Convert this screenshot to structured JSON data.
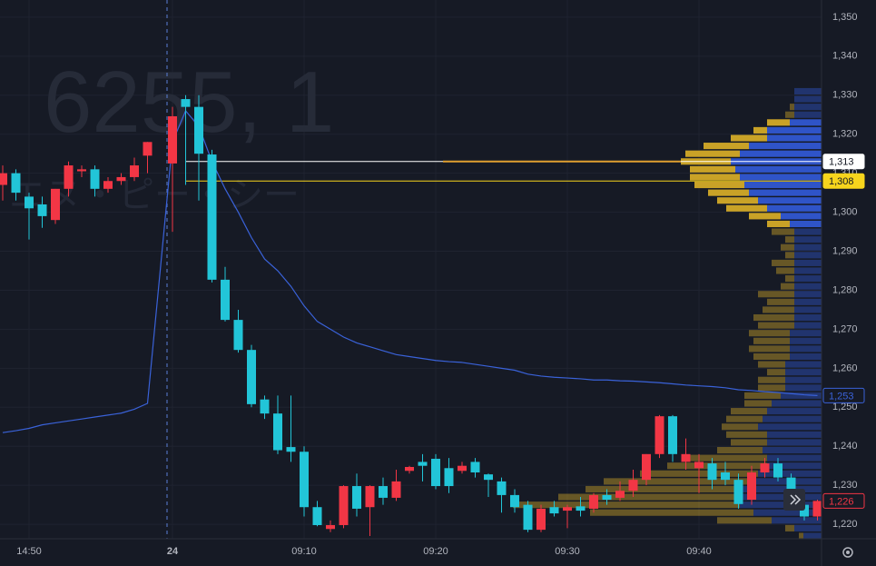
{
  "chart_data": {
    "type": "candlestick",
    "watermark_symbol": "6255, 1",
    "watermark_name": "エヌ・ピー・シー",
    "categories": [
      null,
      null,
      "14:50",
      null,
      null,
      null,
      null,
      null,
      null,
      null,
      null,
      null,
      "24",
      null,
      null,
      null,
      null,
      null,
      null,
      null,
      null,
      null,
      "09:10",
      null,
      null,
      null,
      null,
      null,
      null,
      null,
      null,
      null,
      "09:20",
      null,
      null,
      null,
      null,
      null,
      null,
      null,
      null,
      null,
      "09:30",
      null,
      null,
      null,
      null,
      null,
      null,
      null,
      null,
      null,
      "09:40",
      null,
      null,
      null,
      null,
      null,
      null,
      null,
      null,
      null
    ],
    "open": [
      1307,
      1310,
      1304,
      1302,
      1298,
      1306,
      1310.5,
      1311,
      1306,
      1308,
      1309,
      1314.5,
      1312.5,
      1329,
      1327,
      1314.8,
      1282.7,
      1272.4,
      1264.7,
      1252,
      1248.4,
      1239.8,
      1238.6,
      1224.4,
      1218.8,
      1219.8,
      1229.8,
      1224.4,
      1229.8,
      1226.8,
      1233.7,
      1236,
      1236.8,
      1234.4,
      1233.7,
      1236,
      1232.8,
      1231,
      1227.5,
      1225,
      1218.6,
      1224.4,
      1223.5,
      1224.6,
      1224,
      1227.5,
      1226.8,
      1228.6,
      1231.4,
      1238,
      1247.7,
      1236,
      1234.4,
      1235.6,
      1233.3,
      1231.4,
      1226.3,
      1233.3,
      1235.6,
      1232,
      1225,
      1222
    ],
    "high": [
      1312,
      1311,
      1305,
      1304,
      1306,
      1313,
      1312,
      1312,
      1309,
      1310,
      1314,
      1318,
      1327,
      1330,
      1330,
      1316,
      1286,
      1275,
      1266,
      1253,
      1253,
      1253,
      1240,
      1226,
      1221,
      1230,
      1233,
      1230,
      1232,
      1234,
      1235,
      1238,
      1238,
      1237,
      1236,
      1237,
      1233,
      1232,
      1229,
      1226,
      1225,
      1226,
      1225,
      1227,
      1228,
      1229,
      1231,
      1234,
      1238,
      1248,
      1248,
      1242,
      1238,
      1237,
      1236,
      1233,
      1235,
      1237,
      1237,
      1233,
      1226,
      1226.3
    ],
    "low": [
      1303,
      1303,
      1293,
      1296,
      1297,
      1304,
      1309,
      1304,
      1305,
      1307,
      1308,
      1310,
      1295,
      1307,
      1303,
      1282,
      1272,
      1264,
      1250,
      1247,
      1238,
      1236,
      1222,
      1219.5,
      1218,
      1219,
      1222,
      1217,
      1225,
      1226,
      1233,
      1231,
      1229,
      1228,
      1233,
      1232,
      1227,
      1223,
      1223,
      1218,
      1218,
      1222,
      1219,
      1222,
      1223,
      1225,
      1226,
      1227,
      1230,
      1237,
      1236,
      1234,
      1228,
      1229,
      1230,
      1224,
      1225,
      1232,
      1231,
      1228,
      1221,
      1221
    ],
    "close": [
      1310,
      1305,
      1301,
      1299,
      1306,
      1312,
      1311,
      1306,
      1308,
      1309,
      1312,
      1318,
      1324.6,
      1327,
      1315,
      1282.7,
      1272.4,
      1264.7,
      1250.8,
      1248.4,
      1239,
      1238.6,
      1224.4,
      1219.8,
      1219.8,
      1229.8,
      1224,
      1229.8,
      1226.8,
      1231,
      1234.7,
      1235,
      1229.8,
      1229.8,
      1235,
      1233.3,
      1231.4,
      1227.5,
      1224.4,
      1218.6,
      1224,
      1222.8,
      1224.4,
      1223.5,
      1227.5,
      1226.3,
      1228.6,
      1231.4,
      1238,
      1247.7,
      1238,
      1238,
      1236,
      1231.4,
      1231.4,
      1225.2,
      1233.3,
      1235.6,
      1232,
      1228.6,
      1222,
      1226
    ],
    "up_color": "#f23645",
    "down_color": "#22c5d8",
    "vwap": {
      "color": "#3a62d9",
      "values": [
        1243.5,
        1244,
        1244.6,
        1245.5,
        1246,
        1246.5,
        1247,
        1247.5,
        1248,
        1248.5,
        1249.5,
        1251,
        1318,
        1326,
        1322,
        1313,
        1306,
        1300,
        1293.5,
        1288,
        1285,
        1281,
        1276,
        1272,
        1270,
        1268,
        1266.5,
        1265.5,
        1264.5,
        1263.5,
        1263,
        1262.5,
        1262,
        1261.7,
        1261.5,
        1261,
        1260.5,
        1260,
        1259.5,
        1258.5,
        1258,
        1257.7,
        1257.5,
        1257.3,
        1257,
        1257,
        1256.8,
        1256.7,
        1256.5,
        1256.3,
        1256,
        1255.7,
        1255.5,
        1255.3,
        1255,
        1254.5,
        1254.3,
        1254,
        1253.8,
        1253.5,
        1253.2,
        1253
      ]
    },
    "price_lines": [
      {
        "value": 1313,
        "label": "1,313",
        "color": "#ffffff",
        "text_color": "#131722"
      },
      {
        "value": 1308,
        "label": "1,308",
        "color": "#f7d51d",
        "text_color": "#131722"
      },
      {
        "value": 1253,
        "label": "1,253",
        "color": "#3a62d9",
        "text_color": "#3a62d9"
      },
      {
        "value": 1226,
        "label": "1,226",
        "color": "#f23645",
        "text_color": "#f23645"
      }
    ],
    "volume_profile": {
      "levels": [
        1331,
        1329,
        1327,
        1325,
        1323,
        1321,
        1319,
        1317,
        1315,
        1313,
        1311,
        1309,
        1307,
        1305,
        1303,
        1301,
        1299,
        1297,
        1295,
        1293,
        1291,
        1289,
        1287,
        1285,
        1283,
        1281,
        1279,
        1277,
        1275,
        1273,
        1271,
        1269,
        1267,
        1265,
        1263,
        1261,
        1259,
        1257,
        1255,
        1253,
        1251,
        1249,
        1247,
        1245,
        1243,
        1241,
        1239,
        1237,
        1235,
        1233,
        1231,
        1229,
        1227,
        1225,
        1223,
        1221,
        1219,
        1217
      ],
      "down": [
        30,
        30,
        30,
        30,
        35,
        60,
        60,
        80,
        90,
        100,
        95,
        90,
        85,
        80,
        70,
        60,
        45,
        35,
        30,
        30,
        30,
        30,
        30,
        30,
        30,
        30,
        30,
        30,
        30,
        30,
        30,
        35,
        35,
        35,
        35,
        40,
        40,
        40,
        40,
        45,
        55,
        60,
        65,
        70,
        60,
        60,
        65,
        60,
        60,
        70,
        80,
        90,
        90,
        90,
        75,
        55,
        30,
        20
      ],
      "up": [
        0,
        0,
        5,
        10,
        25,
        15,
        40,
        50,
        60,
        55,
        50,
        55,
        55,
        45,
        45,
        45,
        35,
        25,
        25,
        10,
        15,
        10,
        25,
        20,
        10,
        15,
        40,
        30,
        35,
        45,
        40,
        45,
        40,
        45,
        40,
        30,
        20,
        30,
        30,
        40,
        30,
        40,
        40,
        40,
        45,
        40,
        50,
        90,
        110,
        130,
        160,
        170,
        200,
        250,
        180,
        60,
        10,
        5
      ],
      "up_color": "#c9a227",
      "down_color": "#2f54c8",
      "value_area": {
        "low": 1296,
        "high": 1324
      }
    },
    "ylim": [
      1216.3,
      1354.4
    ],
    "yticks": [
      {
        "value": 1220,
        "label": "1,220"
      },
      {
        "value": 1230,
        "label": "1,230"
      },
      {
        "value": 1240,
        "label": "1,240"
      },
      {
        "value": 1250,
        "label": "1,250"
      },
      {
        "value": 1260,
        "label": "1,260"
      },
      {
        "value": 1270,
        "label": "1,270"
      },
      {
        "value": 1280,
        "label": "1,280"
      },
      {
        "value": 1290,
        "label": "1,290"
      },
      {
        "value": 1300,
        "label": "1,300"
      },
      {
        "value": 1310,
        "label": "1,310"
      },
      {
        "value": 1320,
        "label": "1,320"
      },
      {
        "value": 1330,
        "label": "1,330"
      },
      {
        "value": 1340,
        "label": "1,340"
      },
      {
        "value": 1350,
        "label": "1,350"
      }
    ],
    "grid": true
  }
}
